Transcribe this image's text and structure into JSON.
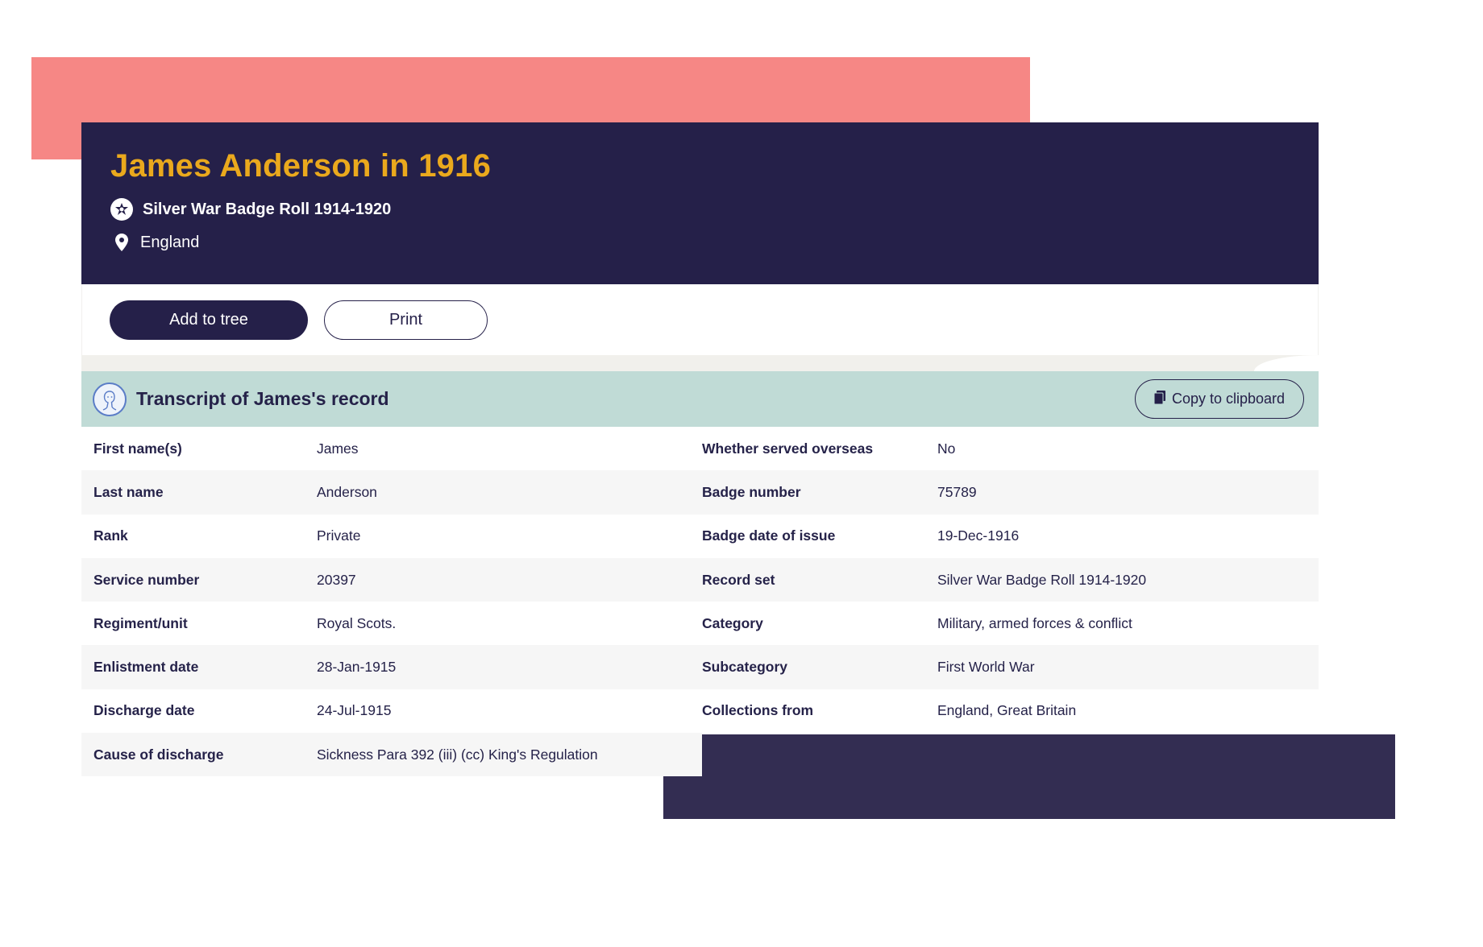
{
  "header": {
    "title": "James Anderson in 1916",
    "collection": "Silver War Badge Roll 1914-1920",
    "place": "England",
    "collection_icon": "badge-icon",
    "place_icon": "map-pin-icon"
  },
  "actions": {
    "add_to_tree": "Add to tree",
    "print": "Print"
  },
  "transcript": {
    "title": "Transcript of James's record",
    "copy_label": "Copy to clipboard",
    "icon": "person-portrait-icon",
    "copy_icon": "clipboard-icon"
  },
  "records_left": [
    {
      "label": "First name(s)",
      "value": "James"
    },
    {
      "label": "Last name",
      "value": "Anderson"
    },
    {
      "label": "Rank",
      "value": "Private"
    },
    {
      "label": "Service number",
      "value": "20397"
    },
    {
      "label": "Regiment/unit",
      "value": "Royal Scots."
    },
    {
      "label": "Enlistment date",
      "value": "28-Jan-1915"
    },
    {
      "label": "Discharge date",
      "value": "24-Jul-1915"
    },
    {
      "label": "Cause of discharge",
      "value": "Sickness Para 392 (iii) (cc) King's Regulation"
    }
  ],
  "records_right": [
    {
      "label": "Whether served overseas",
      "value": "No"
    },
    {
      "label": "Badge number",
      "value": "75789"
    },
    {
      "label": "Badge date of issue",
      "value": "19-Dec-1916"
    },
    {
      "label": "Record set",
      "value": "Silver War Badge Roll 1914-1920"
    },
    {
      "label": "Category",
      "value": "Military, armed forces & conflict"
    },
    {
      "label": "Subcategory",
      "value": "First World War"
    },
    {
      "label": "Collections from",
      "value": "England, Great Britain"
    }
  ],
  "colors": {
    "navy": "#252049",
    "gold": "#eaa91d",
    "pink": "#f68785",
    "mint": "#c0dbd6"
  }
}
